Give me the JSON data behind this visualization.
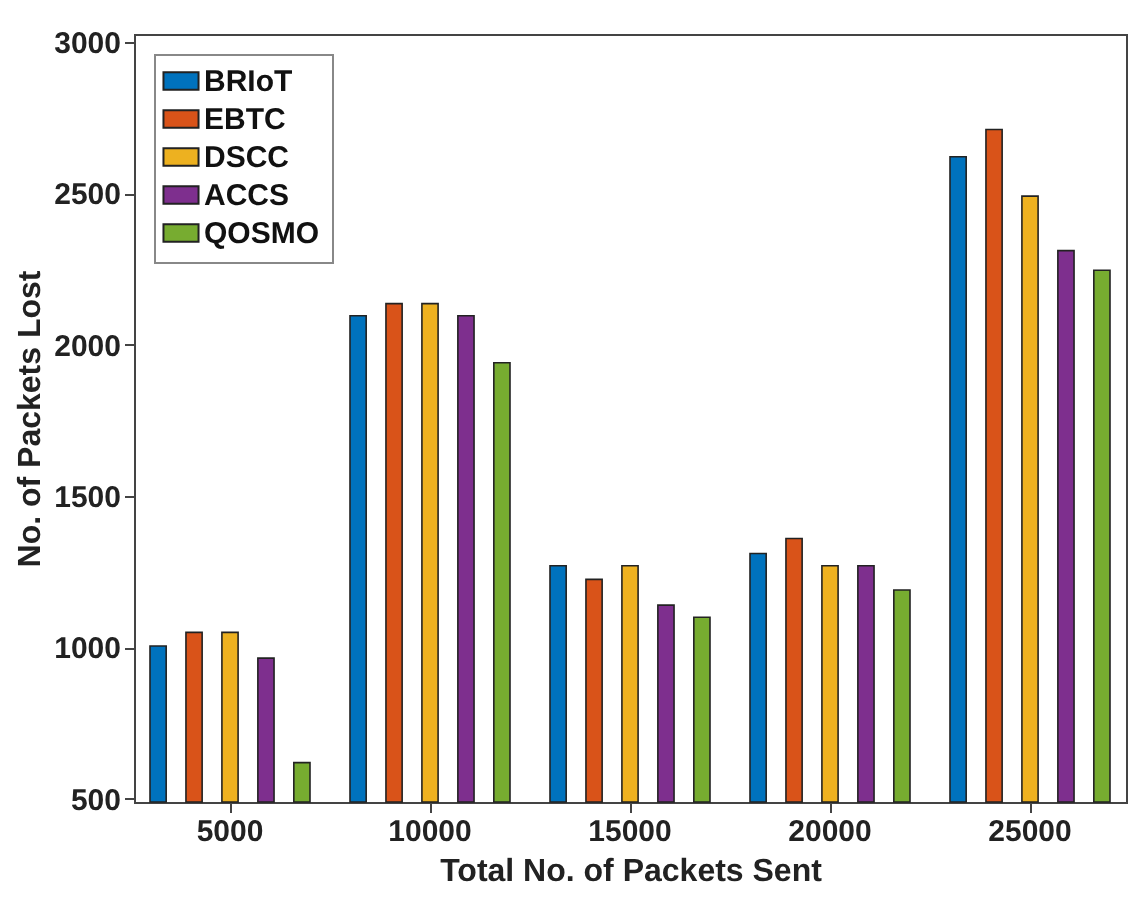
{
  "chart_data": {
    "type": "bar",
    "xlabel": "Total No. of Packets Sent",
    "ylabel": "No. of Packets Lost",
    "categories": [
      "5000",
      "10000",
      "15000",
      "20000",
      "25000"
    ],
    "series": [
      {
        "name": "BRIoT",
        "color": "#0072bd",
        "values": [
          1005,
          2095,
          1270,
          1310,
          2620
        ]
      },
      {
        "name": "EBTC",
        "color": "#d95319",
        "values": [
          1050,
          2135,
          1225,
          1360,
          2710
        ]
      },
      {
        "name": "DSCC",
        "color": "#edb120",
        "values": [
          1050,
          2135,
          1270,
          1270,
          2490
        ]
      },
      {
        "name": "ACCS",
        "color": "#7e2f8e",
        "values": [
          965,
          2095,
          1140,
          1270,
          2310
        ]
      },
      {
        "name": "QOSMO",
        "color": "#77ac30",
        "values": [
          620,
          1940,
          1100,
          1190,
          2245
        ]
      }
    ],
    "ylim": [
      490,
      3025
    ],
    "yticks": [
      500,
      1000,
      1500,
      2000,
      2500,
      3000
    ],
    "grid": false,
    "legend": "top left"
  }
}
